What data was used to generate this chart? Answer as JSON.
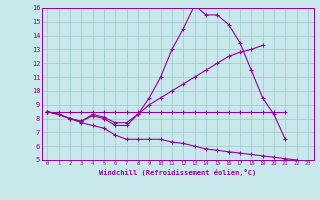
{
  "title": "",
  "xlabel": "Windchill (Refroidissement éolien,°C)",
  "background_color": "#c8e8ec",
  "plot_bg_color": "#c8e8ec",
  "grid_color": "#a0c8cc",
  "line_color": "#990099",
  "xlim": [
    -0.5,
    23.5
  ],
  "ylim": [
    5,
    16
  ],
  "xticks": [
    0,
    1,
    2,
    3,
    4,
    5,
    6,
    7,
    8,
    9,
    10,
    11,
    12,
    13,
    14,
    15,
    16,
    17,
    18,
    19,
    20,
    21,
    22,
    23
  ],
  "yticks": [
    5,
    6,
    7,
    8,
    9,
    10,
    11,
    12,
    13,
    14,
    15,
    16
  ],
  "series": [
    [
      8.5,
      8.3,
      8.0,
      7.8,
      8.2,
      8.0,
      7.5,
      7.5,
      8.3,
      9.5,
      11.0,
      13.0,
      14.5,
      16.2,
      15.5,
      15.5,
      14.8,
      13.5,
      11.5,
      9.5,
      8.3,
      6.5,
      null
    ],
    [
      8.5,
      8.3,
      8.0,
      7.8,
      8.3,
      8.1,
      7.7,
      7.7,
      8.3,
      9.0,
      9.5,
      10.0,
      10.5,
      11.0,
      11.5,
      12.0,
      12.5,
      12.8,
      13.0,
      13.3,
      null,
      null,
      null
    ],
    [
      8.5,
      8.5,
      8.5,
      8.5,
      8.5,
      8.5,
      8.5,
      8.5,
      8.5,
      8.5,
      8.5,
      8.5,
      8.5,
      8.5,
      8.5,
      8.5,
      8.5,
      8.5,
      8.5,
      8.5,
      8.5,
      8.5,
      null
    ],
    [
      8.5,
      8.3,
      8.0,
      7.7,
      7.5,
      7.3,
      6.8,
      6.5,
      6.5,
      6.5,
      6.5,
      6.3,
      6.2,
      6.0,
      5.8,
      5.7,
      5.6,
      5.5,
      5.4,
      5.3,
      5.2,
      5.1,
      5.0
    ]
  ]
}
